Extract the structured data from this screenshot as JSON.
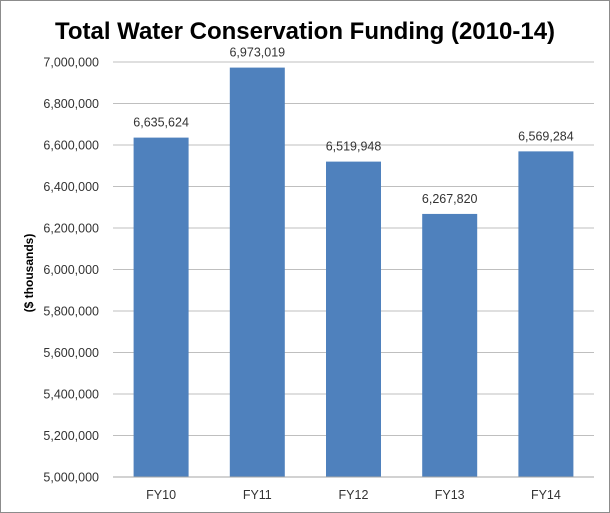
{
  "chart_data": {
    "type": "bar",
    "title": "Total Water Conservation Funding (2010-14)",
    "xlabel": "",
    "ylabel": "($ thousands)",
    "categories": [
      "FY10",
      "FY11",
      "FY12",
      "FY13",
      "FY14"
    ],
    "values": [
      6635624,
      6973019,
      6519948,
      6267820,
      6569284
    ],
    "data_labels": [
      "6,635,624",
      "6,973,019",
      "6,519,948",
      "6,267,820",
      "6,569,284"
    ],
    "ylim": [
      5000000,
      7000000
    ],
    "yticks": [
      5000000,
      5200000,
      5400000,
      5600000,
      5800000,
      6000000,
      6200000,
      6400000,
      6600000,
      6800000,
      7000000
    ],
    "ytick_labels": [
      "5,000,000",
      "5,200,000",
      "5,400,000",
      "5,600,000",
      "5,800,000",
      "6,000,000",
      "6,200,000",
      "6,400,000",
      "6,600,000",
      "6,800,000",
      "7,000,000"
    ],
    "grid": true,
    "legend": "none",
    "bar_color": "#4f81bd",
    "grid_color": "#bfbfbf"
  }
}
